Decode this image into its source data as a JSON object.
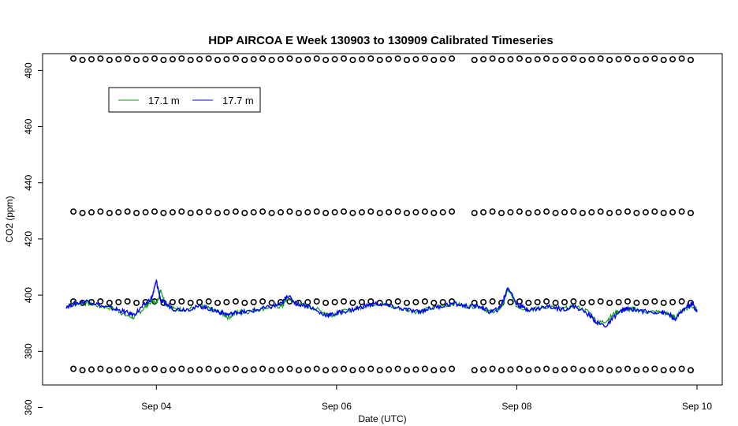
{
  "chart_data": {
    "type": "line",
    "title": "HDP AIRCOA E  Week 130903 to 130909  Calibrated Timeseries",
    "xlabel": "Date (UTC)",
    "ylabel": "CO2 (ppm)",
    "xlim": [
      3.0,
      10.0
    ],
    "ylim": [
      368,
      486
    ],
    "x_ticks": [
      {
        "value": 4,
        "label": "Sep 04"
      },
      {
        "value": 6,
        "label": "Sep 06"
      },
      {
        "value": 8,
        "label": "Sep 08"
      },
      {
        "value": 10,
        "label": "Sep 10"
      }
    ],
    "y_ticks": [
      {
        "value": 360,
        "label": "360"
      },
      {
        "value": 380,
        "label": "380"
      },
      {
        "value": 400,
        "label": "400"
      },
      {
        "value": 420,
        "label": "420"
      },
      {
        "value": 440,
        "label": "440"
      },
      {
        "value": 460,
        "label": "460"
      },
      {
        "value": 480,
        "label": "480"
      }
    ],
    "legend": {
      "placement": "top-left"
    },
    "series": [
      {
        "name": "17.1 m",
        "color": "#00a000",
        "x": [
          3.0,
          3.1,
          3.25,
          3.4,
          3.55,
          3.65,
          3.75,
          3.85,
          3.95,
          4.0,
          4.05,
          4.1,
          4.2,
          4.35,
          4.5,
          4.6,
          4.7,
          4.8,
          4.9,
          5.0,
          5.15,
          5.3,
          5.4,
          5.45,
          5.55,
          5.7,
          5.85,
          5.95,
          6.05,
          6.2,
          6.3,
          6.45,
          6.6,
          6.75,
          6.9,
          7.0,
          7.15,
          7.3,
          7.45,
          7.6,
          7.7,
          7.8,
          7.85,
          7.9,
          8.0,
          8.1,
          8.2,
          8.35,
          8.5,
          8.65,
          8.8,
          8.9,
          9.0,
          9.1,
          9.2,
          9.3,
          9.45,
          9.6,
          9.7,
          9.75,
          9.85,
          9.95,
          10.0
        ],
        "values": [
          396,
          397,
          397,
          396,
          395,
          393,
          392,
          395,
          398,
          397,
          402,
          397,
          395,
          395,
          396,
          395,
          394,
          392,
          394,
          394,
          395,
          396,
          396,
          399,
          397,
          396,
          394,
          393,
          394,
          395,
          396,
          397,
          396,
          395,
          394,
          395,
          396,
          397,
          396,
          396,
          394,
          395,
          397,
          402,
          396,
          395,
          395,
          396,
          395,
          396,
          394,
          390,
          391,
          394,
          395,
          395,
          394,
          394,
          393,
          392,
          395,
          396,
          395
        ]
      },
      {
        "name": "17.7 m",
        "color": "#0000ff",
        "x": [
          3.0,
          3.1,
          3.25,
          3.4,
          3.55,
          3.65,
          3.75,
          3.85,
          3.95,
          4.0,
          4.05,
          4.1,
          4.2,
          4.35,
          4.5,
          4.6,
          4.7,
          4.8,
          4.9,
          5.0,
          5.15,
          5.3,
          5.4,
          5.45,
          5.55,
          5.7,
          5.85,
          5.95,
          6.05,
          6.2,
          6.3,
          6.45,
          6.6,
          6.75,
          6.9,
          7.0,
          7.15,
          7.3,
          7.45,
          7.6,
          7.7,
          7.8,
          7.85,
          7.9,
          8.0,
          8.1,
          8.2,
          8.35,
          8.5,
          8.65,
          8.8,
          8.9,
          9.0,
          9.1,
          9.2,
          9.3,
          9.45,
          9.6,
          9.7,
          9.75,
          9.85,
          9.95,
          10.0
        ],
        "values": [
          396,
          397,
          398,
          396,
          395,
          394,
          393,
          396,
          399,
          405,
          398,
          397,
          395,
          395,
          396,
          395,
          394,
          393,
          394,
          394,
          395,
          396,
          397,
          400,
          397,
          396,
          393,
          393,
          394,
          395,
          396,
          397,
          396,
          395,
          394,
          395,
          396,
          397,
          396,
          396,
          394,
          395,
          398,
          403,
          397,
          395,
          395,
          396,
          395,
          396,
          393,
          390,
          389,
          393,
          395,
          395,
          394,
          394,
          393,
          391,
          395,
          397,
          394
        ]
      }
    ],
    "reference_points": {
      "marker": "open-circle",
      "levels_ppm": [
        484,
        429.5,
        397.5,
        373.5
      ],
      "x_ranges": [
        [
          3.08,
          7.28
        ],
        [
          7.53,
          9.98
        ]
      ],
      "spacing_days": 0.1
    }
  }
}
